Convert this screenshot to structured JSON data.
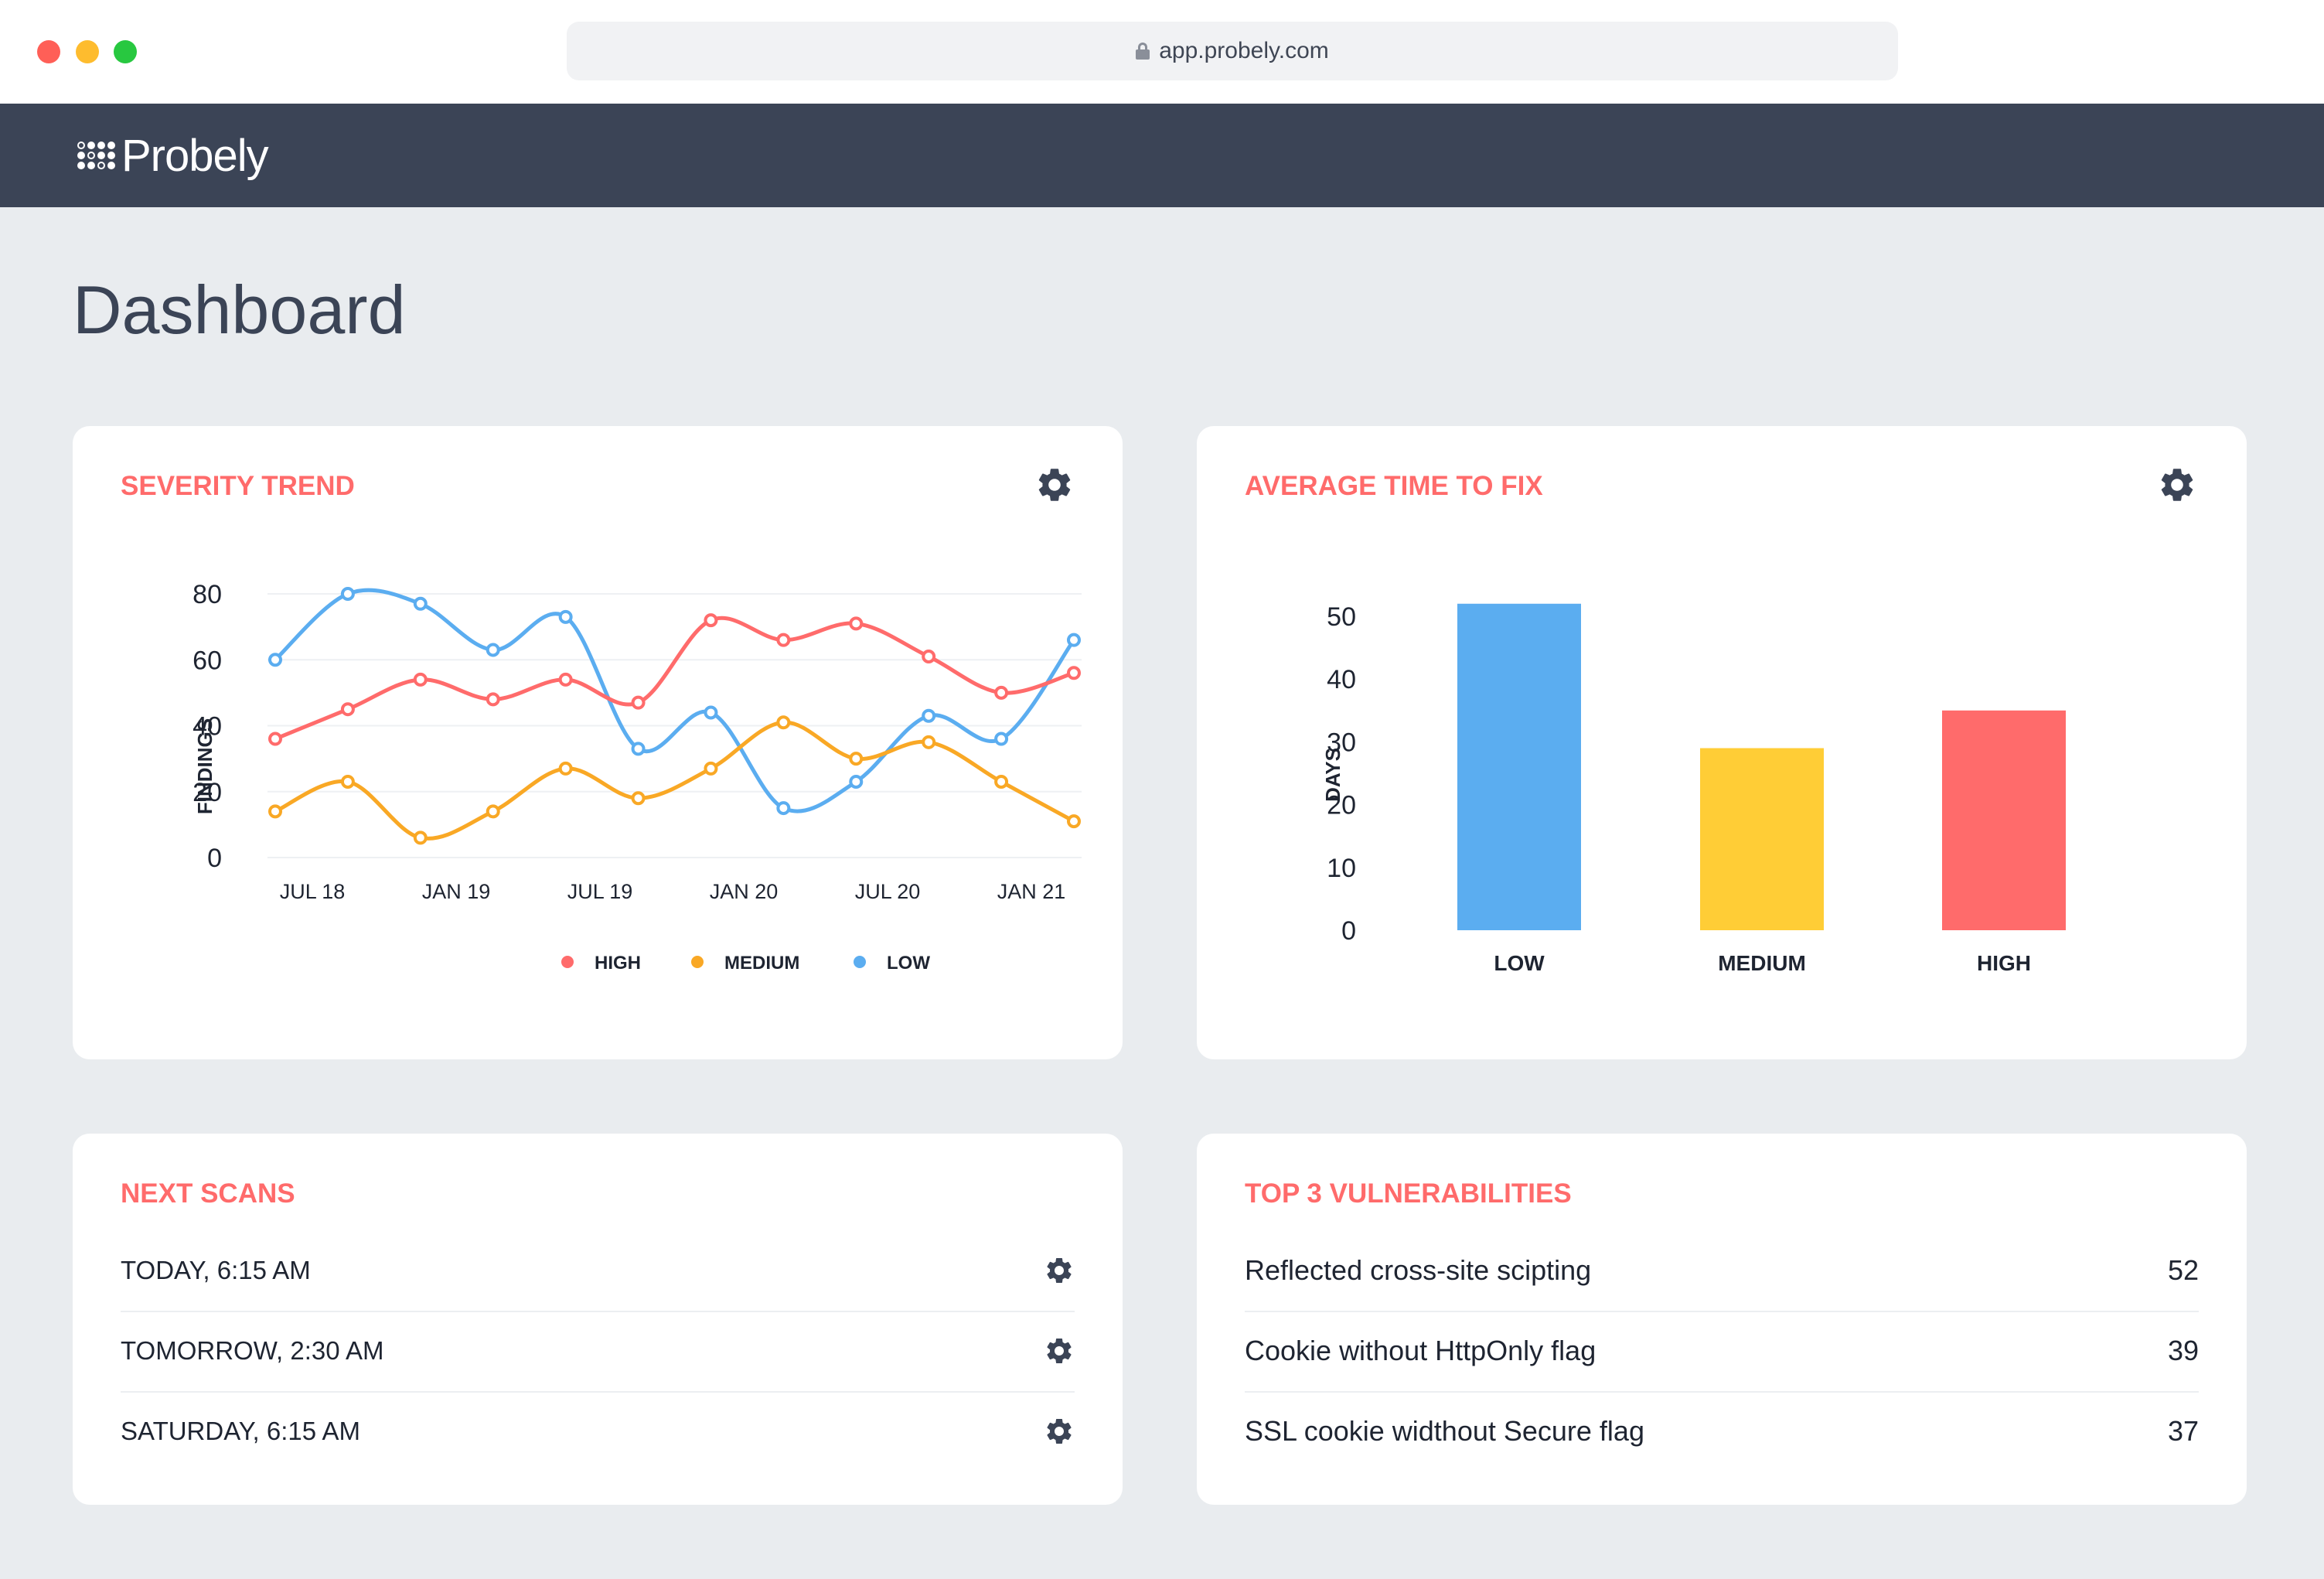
{
  "browser": {
    "url": "app.probely.com"
  },
  "app": {
    "brand": "Probely"
  },
  "page": {
    "title": "Dashboard"
  },
  "severity_trend": {
    "title": "SEVERITY TREND",
    "ylabel": "FINDINGS",
    "legend": [
      "HIGH",
      "MEDIUM",
      "LOW"
    ]
  },
  "avg_time": {
    "title": "AVERAGE TIME TO FIX",
    "ylabel": "DAYS"
  },
  "next_scans": {
    "title": "NEXT SCANS",
    "items": [
      "TODAY, 6:15 AM",
      "TOMORROW, 2:30 AM",
      "SATURDAY, 6:15 AM"
    ]
  },
  "top_vulns": {
    "title": "TOP 3 VULNERABILITIES",
    "items": [
      {
        "name": "Reflected cross-site scipting",
        "count": "52"
      },
      {
        "name": "Cookie without HttpOnly flag",
        "count": "39"
      },
      {
        "name": "SSL cookie widthout Secure flag",
        "count": "37"
      }
    ]
  },
  "colors": {
    "high": "#ff6b6b",
    "medium": "#f9a825",
    "low": "#5badf0",
    "medium_bar": "#ffcd36",
    "accent": "#ff6b6b",
    "header": "#3b4456"
  },
  "chart_data": [
    {
      "type": "line",
      "title": "SEVERITY TREND",
      "xlabel": "",
      "ylabel": "FINDINGS",
      "x_ticks": [
        "JUL 18",
        "JAN 19",
        "JUL 19",
        "JAN 20",
        "JUL 20",
        "JAN 21"
      ],
      "ylim": [
        0,
        80
      ],
      "y_ticks": [
        0,
        20,
        40,
        60,
        80
      ],
      "grid": true,
      "legend_position": "bottom",
      "series": [
        {
          "name": "HIGH",
          "color": "#ff6b6b",
          "values": [
            36,
            45,
            54,
            48,
            54,
            47,
            72,
            66,
            71,
            61,
            50,
            56
          ]
        },
        {
          "name": "MEDIUM",
          "color": "#f9a825",
          "values": [
            14,
            23,
            6,
            14,
            27,
            18,
            27,
            41,
            30,
            35,
            23,
            11
          ]
        },
        {
          "name": "LOW",
          "color": "#5badf0",
          "values": [
            60,
            80,
            77,
            63,
            73,
            33,
            44,
            15,
            23,
            43,
            36,
            66
          ]
        }
      ]
    },
    {
      "type": "bar",
      "title": "AVERAGE TIME TO FIX",
      "xlabel": "",
      "ylabel": "DAYS",
      "categories": [
        "LOW",
        "MEDIUM",
        "HIGH"
      ],
      "values": [
        52,
        29,
        35
      ],
      "colors": [
        "#5badf0",
        "#ffcd36",
        "#ff6b6b"
      ],
      "ylim": [
        0,
        50
      ],
      "y_ticks": [
        0,
        10,
        20,
        30,
        40,
        50
      ],
      "grid": false
    }
  ]
}
